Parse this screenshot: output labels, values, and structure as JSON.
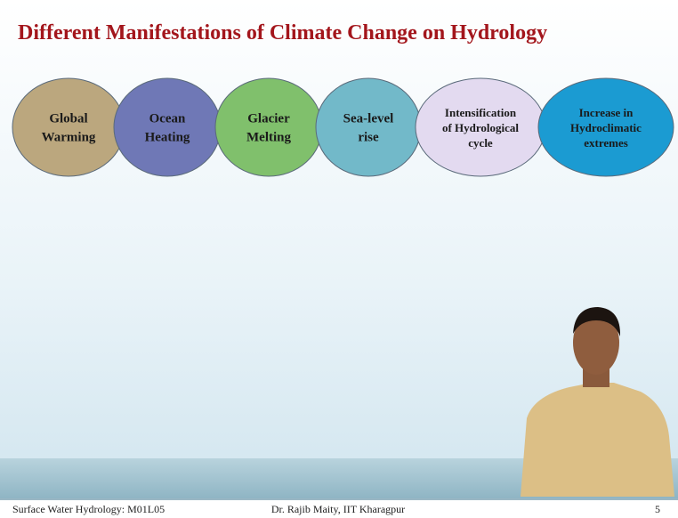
{
  "header": {
    "title": "Different Manifestations of Climate Change on Hydrology"
  },
  "stages": [
    {
      "lines": [
        "Global",
        "Warming"
      ]
    },
    {
      "lines": [
        "Ocean",
        "Heating"
      ]
    },
    {
      "lines": [
        "Glacier",
        "Melting"
      ]
    },
    {
      "lines": [
        "Sea-level",
        "rise"
      ]
    },
    {
      "lines": [
        "Intensification",
        "of Hydrological",
        "cycle"
      ]
    },
    {
      "lines": [
        "Increase in",
        "Hydroclimatic",
        "extremes"
      ]
    }
  ],
  "footer": {
    "left": "Surface Water Hydrology: M01L05",
    "center": "Dr. Rajib Maity, IIT Kharagpur",
    "page": "5"
  }
}
